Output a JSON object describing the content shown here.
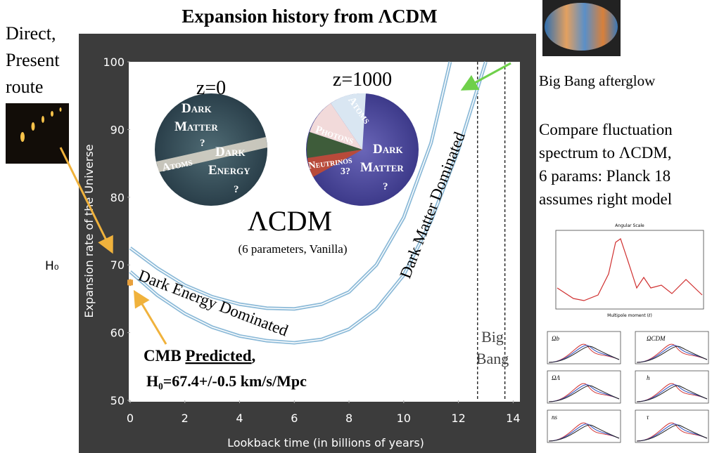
{
  "title": "Expansion history from ΛCDM",
  "left_note": [
    "Direct,",
    "Present",
    "route"
  ],
  "h0_label": "H₀",
  "right_notes": {
    "afterglow": "Big Bang afterglow",
    "compare": [
      "Compare fluctuation",
      "spectrum to ΛCDM,",
      "6 params: Planck 18",
      "assumes right model"
    ]
  },
  "insets": {
    "spectrum": {
      "top_axis": "Angular Scale",
      "x_label": "Multipole moment (ℓ)"
    },
    "params": [
      "Ωb",
      "ΩCDM",
      "ΩΛ",
      "h",
      "ns",
      "τ"
    ]
  },
  "chart_data": {
    "type": "line",
    "x_label": "Lookback time (in billions of years)",
    "y_label": "Expansion rate of the Universe",
    "xlim": [
      0,
      14.3
    ],
    "ylim": [
      50,
      100
    ],
    "xticks": [
      0,
      2,
      4,
      6,
      8,
      10,
      12,
      14
    ],
    "yticks": [
      50,
      60,
      70,
      80,
      90,
      100
    ],
    "series": [
      {
        "color": "#8cbad8",
        "x": [
          0,
          1,
          2,
          3,
          4,
          5,
          6,
          7,
          8,
          9,
          10,
          11,
          11.7
        ],
        "values": [
          72.5,
          69.5,
          67,
          65.3,
          64.2,
          63.6,
          63.5,
          64.2,
          66,
          70,
          77,
          88,
          100
        ]
      },
      {
        "color": "#8cbad8",
        "x": [
          0,
          1,
          2,
          3,
          4,
          5,
          6,
          7,
          8,
          9,
          10,
          11,
          12,
          13
        ],
        "values": [
          69,
          65.5,
          62.8,
          60.8,
          59.5,
          58.8,
          58.5,
          59,
          60.5,
          63.5,
          68.5,
          76.5,
          87,
          100
        ]
      }
    ],
    "point": {
      "x": 0,
      "y": 67.4,
      "error": 0.5,
      "color": "#e8a03c"
    },
    "vlines": [
      12.7,
      13.7
    ],
    "annotations": {
      "z0": "z=0",
      "z1000": "z=1000",
      "circle1": [
        "Dark",
        "Matter",
        "?",
        "Atoms",
        "Dark",
        "Energy",
        "?"
      ],
      "circle2": [
        "Atoms",
        "Photons",
        "Neutrinos",
        "3?",
        "Dark",
        "Matter",
        "?"
      ],
      "lcdm": "ΛCDM",
      "lcdm_sub": "(6 parameters, Vanilla)",
      "de": "Dark Energy Dominated",
      "dm": "Dark Matter Dominated",
      "big_bang": [
        "Big",
        "Bang"
      ],
      "cmb": {
        "prefix": "CMB",
        "emph": "Predicted",
        "suffix": ","
      },
      "h0_value": "H₀=67.4+/-0.5 km/s/Mpc"
    }
  }
}
